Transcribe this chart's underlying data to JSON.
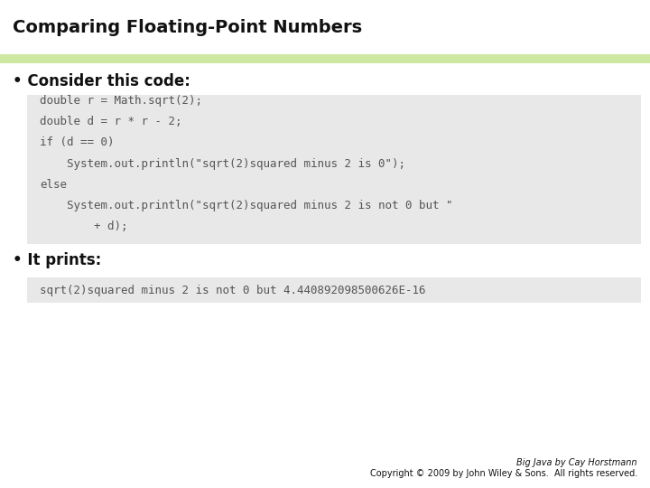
{
  "title": "Comparing Floating-Point Numbers",
  "bg_color": "#ffffff",
  "separator_color": "#cde8a0",
  "code_bg_color": "#e8e8e8",
  "bullet1_text": "Consider this code:",
  "code_lines": [
    "double r = Math.sqrt(2);",
    "double d = r * r - 2;",
    "if (d == 0)",
    "    System.out.println(\"sqrt(2)squared minus 2 is 0\");",
    "else",
    "    System.out.println(\"sqrt(2)squared minus 2 is not 0 but \"",
    "        + d);"
  ],
  "bullet2_text": "It prints:",
  "output_line": "sqrt(2)squared minus 2 is not 0 but 4.440892098500626E-16",
  "footer_line1": "Big Java by Cay Horstmann",
  "footer_line2": "Copyright © 2009 by John Wiley & Sons.  All rights reserved.",
  "title_font_size": 14,
  "bullet_font_size": 12,
  "code_font_size": 9,
  "output_font_size": 9,
  "footer_font_size": 7
}
